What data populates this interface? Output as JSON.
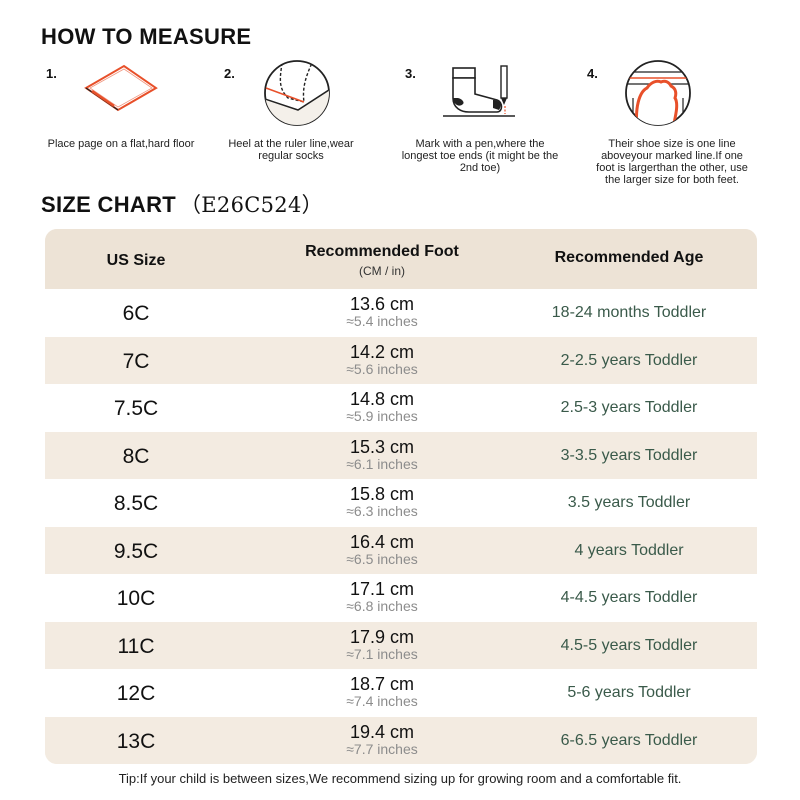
{
  "measure": {
    "title": "HOW TO MEASURE",
    "steps": [
      {
        "num": "1.",
        "caption": "Place page on a flat,hard floor",
        "icon": "paper-on-floor-icon"
      },
      {
        "num": "2.",
        "caption": "Heel at the ruler line,wear regular socks",
        "icon": "heel-on-line-icon"
      },
      {
        "num": "3.",
        "caption": "Mark with a pen,where the longest toe ends (it might be the 2nd toe)",
        "icon": "sock-and-pen-icon"
      },
      {
        "num": "4.",
        "caption": "Their shoe size is one line aboveyour marked line.If one foot is largerthan the other, use the larger size for both feet.",
        "icon": "foot-outline-icon"
      }
    ]
  },
  "size_chart": {
    "title": "SIZE CHART",
    "model": "（E26C524）",
    "headers": {
      "size": "US Size",
      "foot": "Recommended Foot",
      "foot_sub": "(CM / in)",
      "age": "Recommended Age"
    },
    "rows": [
      {
        "size": "6C",
        "cm": "13.6 cm",
        "in": "≈5.4 inches",
        "age": "18-24 months Toddler"
      },
      {
        "size": "7C",
        "cm": "14.2 cm",
        "in": "≈5.6 inches",
        "age": "2-2.5 years Toddler"
      },
      {
        "size": "7.5C",
        "cm": "14.8 cm",
        "in": "≈5.9 inches",
        "age": "2.5-3 years Toddler"
      },
      {
        "size": "8C",
        "cm": "15.3 cm",
        "in": "≈6.1 inches",
        "age": "3-3.5 years Toddler"
      },
      {
        "size": "8.5C",
        "cm": "15.8 cm",
        "in": "≈6.3 inches",
        "age": "3.5 years Toddler"
      },
      {
        "size": "9.5C",
        "cm": "16.4 cm",
        "in": "≈6.5 inches",
        "age": "4 years Toddler"
      },
      {
        "size": "10C",
        "cm": "17.1 cm",
        "in": "≈6.8 inches",
        "age": "4-4.5 years Toddler"
      },
      {
        "size": "11C",
        "cm": "17.9 cm",
        "in": "≈7.1 inches",
        "age": "4.5-5 years Toddler"
      },
      {
        "size": "12C",
        "cm": "18.7 cm",
        "in": "≈7.4 inches",
        "age": "5-6 years Toddler"
      },
      {
        "size": "13C",
        "cm": "19.4 cm",
        "in": "≈7.7 inches",
        "age": "6-6.5 years Toddler"
      }
    ]
  },
  "tip": "Tip:If your child is between sizes,We recommend sizing up for growing room and a comfortable fit.",
  "colors": {
    "accent": "#e8502a",
    "header_bg": "#ede3d6",
    "row_alt_bg": "#f3ebe1",
    "age_text": "#3a5a4a"
  }
}
